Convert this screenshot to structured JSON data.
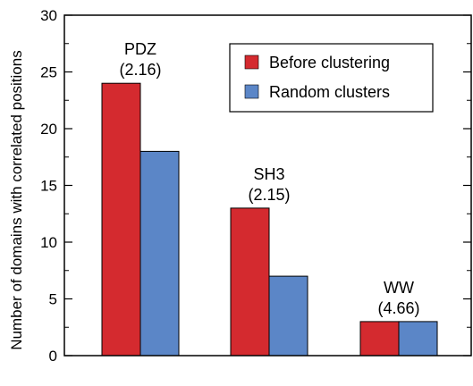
{
  "chart_data": {
    "type": "bar",
    "categories": [
      "PDZ",
      "SH3",
      "WW"
    ],
    "category_notes": [
      "(2.16)",
      "(2.15)",
      "(4.66)"
    ],
    "series": [
      {
        "name": "Before clustering",
        "values": [
          24,
          13,
          3
        ],
        "color": "#d42a2f"
      },
      {
        "name": "Random clusters",
        "values": [
          18,
          7,
          3
        ],
        "color": "#5b86c7"
      }
    ],
    "ylabel": "Number of domains with correlated positions",
    "xlabel": "",
    "ylim": [
      0,
      30
    ],
    "yticks": [
      0,
      5,
      10,
      15,
      20,
      25,
      30
    ],
    "grid": false,
    "legend_position": "top-right"
  }
}
